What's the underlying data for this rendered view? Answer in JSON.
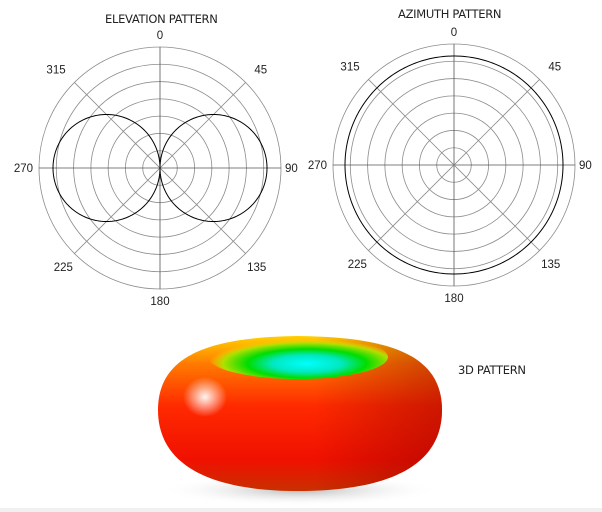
{
  "elevation": {
    "title": "ELEVATION PATTERN",
    "angle_labels": [
      "0",
      "45",
      "90",
      "135",
      "180",
      "225",
      "270",
      "315"
    ],
    "rings": 7,
    "pattern": "figure-eight, max at 90 and 270, null at 0 and 180"
  },
  "azimuth": {
    "title": "AZIMUTH PATTERN",
    "angle_labels": [
      "0",
      "45",
      "90",
      "135",
      "180",
      "225",
      "270",
      "315"
    ],
    "rings": 7,
    "pattern": "omnidirectional circle"
  },
  "pattern3d": {
    "title": "3D PATTERN",
    "colors": {
      "hot": "#ff1a00",
      "mid": "#ffcc00",
      "green": "#00e000",
      "cyan": "#00ffff"
    }
  },
  "colors": {
    "grid": "#8c8c8c",
    "trace": "#000000",
    "axes": "#555555"
  }
}
